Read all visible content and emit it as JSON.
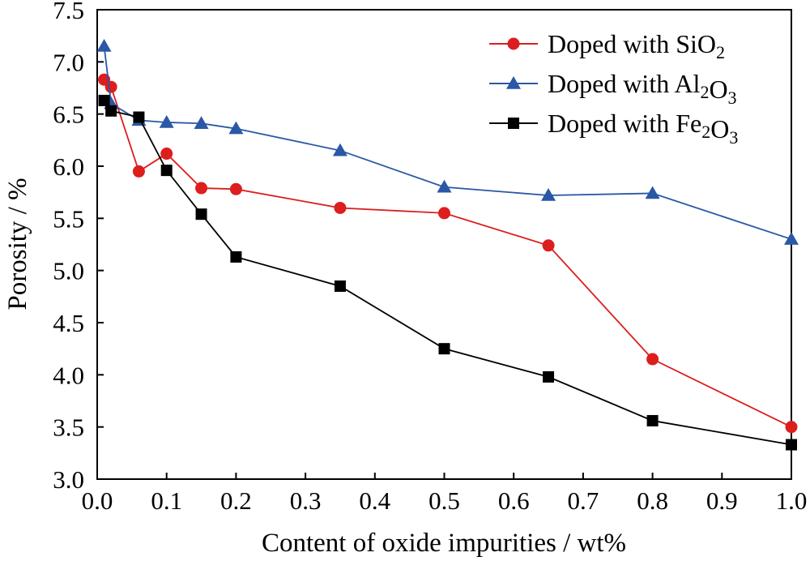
{
  "chart_data": {
    "type": "line",
    "title": "",
    "xlabel": "Content of oxide impurities / wt%",
    "ylabel": "Porosity / %",
    "xlim": [
      0.0,
      1.0
    ],
    "ylim": [
      3.0,
      7.5
    ],
    "x_ticks": [
      "0.0",
      "0.1",
      "0.2",
      "0.3",
      "0.4",
      "0.5",
      "0.6",
      "0.7",
      "0.8",
      "0.9",
      "1.0"
    ],
    "y_ticks": [
      "3.0",
      "3.5",
      "4.0",
      "4.5",
      "5.0",
      "5.5",
      "6.0",
      "6.5",
      "7.0",
      "7.5"
    ],
    "grid": false,
    "legend_position": "top-right",
    "series": [
      {
        "name": "Doped with SiO2",
        "legend_prefix": "Doped with SiO",
        "legend_formula": [
          [
            "Si",
            "O",
            "2"
          ]
        ],
        "color": "#dc1e1e",
        "marker": "circle",
        "x": [
          0.01,
          0.02,
          0.06,
          0.1,
          0.15,
          0.2,
          0.35,
          0.5,
          0.65,
          0.8,
          1.0
        ],
        "y": [
          6.83,
          6.76,
          5.95,
          6.12,
          5.79,
          5.78,
          5.6,
          5.55,
          5.24,
          4.15,
          3.5
        ]
      },
      {
        "name": "Doped with Al2O3",
        "color": "#2a58a6",
        "marker": "triangle",
        "x": [
          0.01,
          0.02,
          0.06,
          0.1,
          0.15,
          0.2,
          0.35,
          0.5,
          0.65,
          0.8,
          1.0
        ],
        "y": [
          7.15,
          6.6,
          6.44,
          6.42,
          6.41,
          6.36,
          6.15,
          5.8,
          5.72,
          5.74,
          5.3
        ]
      },
      {
        "name": "Doped with Fe2O3",
        "color": "#000000",
        "marker": "square",
        "x": [
          0.01,
          0.02,
          0.06,
          0.1,
          0.15,
          0.2,
          0.35,
          0.5,
          0.65,
          0.8,
          1.0
        ],
        "y": [
          6.63,
          6.53,
          6.47,
          5.96,
          5.54,
          5.13,
          4.85,
          4.25,
          3.98,
          3.56,
          3.33
        ]
      }
    ]
  }
}
